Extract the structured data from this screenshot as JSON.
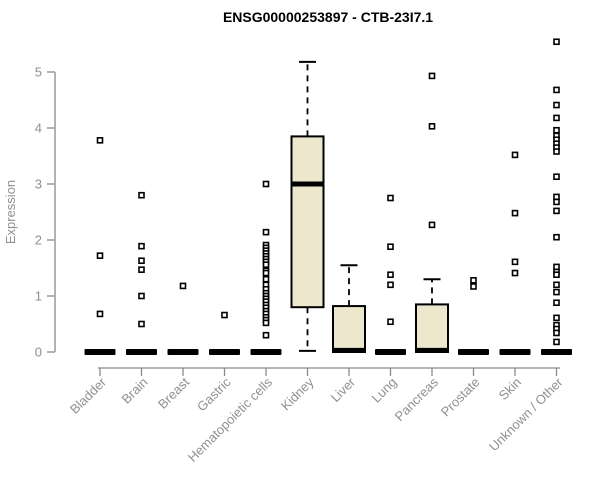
{
  "chart_data": {
    "type": "boxplot",
    "title": "ENSG00000253897 - CTB-23I7.1",
    "ylabel": "Expression",
    "xlabel": "",
    "ylim": [
      0,
      5.6
    ],
    "yticks": [
      0,
      1,
      2,
      3,
      4,
      5
    ],
    "grid": false,
    "legend": "none",
    "colors": {
      "box_fill": "#ece7cd",
      "box_stroke": "#000000",
      "median": "#000000",
      "outlier_stroke": "#000000",
      "outlier_fill": "#ffffff",
      "axis": "#8a8a8a",
      "tick_text": "#909090",
      "title_text": "#000000",
      "background": "#ffffff"
    },
    "categories": [
      "Bladder",
      "Brain",
      "Breast",
      "Gastric",
      "Hematopoietic cells",
      "Kidney",
      "Liver",
      "Lung",
      "Pancreas",
      "Prostate",
      "Skin",
      "Unknown / Other"
    ],
    "series": [
      {
        "category": "Bladder",
        "q1": 0,
        "median": 0,
        "q3": 0,
        "whisker_low": 0,
        "whisker_high": 0,
        "outliers": [
          3.78,
          1.72,
          0.68
        ]
      },
      {
        "category": "Brain",
        "q1": 0,
        "median": 0,
        "q3": 0,
        "whisker_low": 0,
        "whisker_high": 0,
        "outliers": [
          2.8,
          1.89,
          1.63,
          1.47,
          1.0,
          0.5
        ]
      },
      {
        "category": "Breast",
        "q1": 0,
        "median": 0,
        "q3": 0,
        "whisker_low": 0,
        "whisker_high": 0,
        "outliers": [
          1.18
        ]
      },
      {
        "category": "Gastric",
        "q1": 0,
        "median": 0,
        "q3": 0,
        "whisker_low": 0,
        "whisker_high": 0,
        "outliers": [
          0.66
        ]
      },
      {
        "category": "Hematopoietic cells",
        "q1": 0,
        "median": 0,
        "q3": 0,
        "whisker_low": 0,
        "whisker_high": 0,
        "outliers": [
          3.0,
          2.14,
          1.91,
          1.86,
          1.81,
          1.76,
          1.71,
          1.66,
          1.61,
          1.56,
          1.45,
          1.41,
          1.3,
          1.2,
          1.12,
          1.05,
          1.0,
          0.95,
          0.9,
          0.84,
          0.79,
          0.73,
          0.68,
          0.62,
          0.57,
          0.52,
          0.3
        ]
      },
      {
        "category": "Kidney",
        "q1": 0.8,
        "median": 3.0,
        "q3": 3.85,
        "whisker_low": 0.02,
        "whisker_high": 5.18,
        "outliers": []
      },
      {
        "category": "Liver",
        "q1": 0,
        "median": 0.03,
        "q3": 0.82,
        "whisker_low": 0,
        "whisker_high": 1.55,
        "outliers": []
      },
      {
        "category": "Lung",
        "q1": 0,
        "median": 0,
        "q3": 0,
        "whisker_low": 0,
        "whisker_high": 0,
        "outliers": [
          2.75,
          1.88,
          1.38,
          1.2,
          0.54
        ]
      },
      {
        "category": "Pancreas",
        "q1": 0,
        "median": 0.03,
        "q3": 0.85,
        "whisker_low": 0,
        "whisker_high": 1.3,
        "outliers": [
          4.93,
          4.03,
          2.27
        ]
      },
      {
        "category": "Prostate",
        "q1": 0,
        "median": 0,
        "q3": 0,
        "whisker_low": 0,
        "whisker_high": 0,
        "outliers": [
          1.28,
          1.17
        ]
      },
      {
        "category": "Skin",
        "q1": 0,
        "median": 0,
        "q3": 0,
        "whisker_low": 0,
        "whisker_high": 0,
        "outliers": [
          3.52,
          2.48,
          1.61,
          1.41
        ]
      },
      {
        "category": "Unknown / Other",
        "q1": 0,
        "median": 0,
        "q3": 0,
        "whisker_low": 0,
        "whisker_high": 0,
        "outliers": [
          5.54,
          4.68,
          4.41,
          4.18,
          3.96,
          3.86,
          3.79,
          3.72,
          3.65,
          3.58,
          3.13,
          2.77,
          2.68,
          2.52,
          2.05,
          1.52,
          1.43,
          1.38,
          1.2,
          1.07,
          0.88,
          0.61,
          0.48,
          0.41,
          0.34,
          0.18
        ]
      }
    ]
  }
}
